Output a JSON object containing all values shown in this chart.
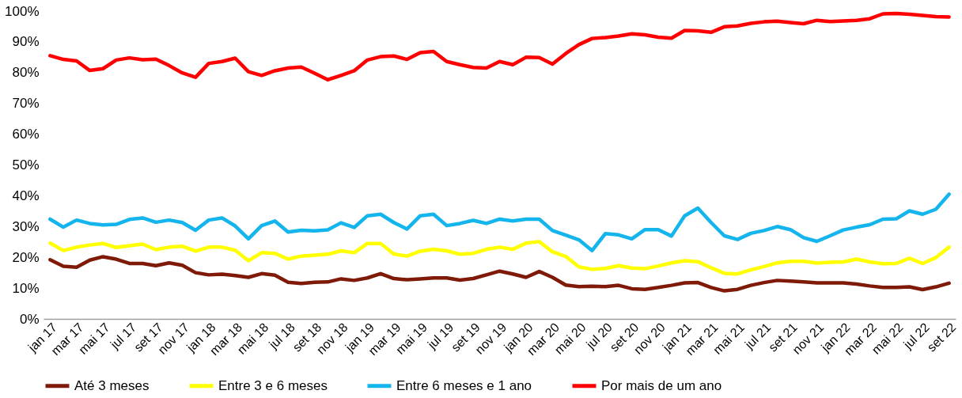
{
  "chart_data": {
    "type": "line",
    "categories": [
      "jan 17",
      null,
      "mar 17",
      null,
      "mai 17",
      null,
      "jul 17",
      null,
      "set 17",
      null,
      "nov 17",
      null,
      "jan 18",
      null,
      "mar 18",
      null,
      "mai 18",
      null,
      "jul 18",
      null,
      "set 18",
      null,
      "nov 18",
      null,
      "jan 19",
      null,
      "mar 19",
      null,
      "mai 19",
      null,
      "jul 19",
      null,
      "set 19",
      null,
      "nov 19",
      null,
      "jan 20",
      null,
      "mar 20",
      null,
      "mai 20",
      null,
      "jul 20",
      null,
      "set 20",
      null,
      "nov 20",
      null,
      "jan 21",
      null,
      "mar 21",
      null,
      "mai 21",
      null,
      "jul 21",
      null,
      "set 21",
      null,
      "nov 21",
      null,
      "jan 22",
      null,
      "mar 22",
      null,
      "mai 22",
      null,
      "jul 22",
      null,
      "set 22"
    ],
    "series": [
      {
        "name": "Até 3 meses",
        "color": "#7f1a08",
        "values": [
          19.2,
          17.1,
          16.8,
          19.1,
          20.2,
          19.4,
          18.0,
          18.0,
          17.3,
          18.2,
          17.4,
          15.0,
          14.3,
          14.5,
          14.1,
          13.5,
          14.7,
          14.2,
          11.9,
          11.5,
          11.9,
          12.0,
          13.0,
          12.5,
          13.3,
          14.7,
          13.1,
          12.7,
          13.0,
          13.3,
          13.3,
          12.6,
          13.1,
          14.3,
          15.5,
          14.6,
          13.5,
          15.4,
          13.5,
          11.0,
          10.5,
          10.6,
          10.5,
          10.9,
          9.8,
          9.6,
          10.2,
          10.9,
          11.7,
          11.8,
          10.2,
          9.1,
          9.6,
          10.9,
          11.8,
          12.5,
          12.3,
          12.0,
          11.7,
          11.7,
          11.7,
          11.3,
          10.7,
          10.2,
          10.2,
          10.4,
          9.5,
          10.4,
          11.6
        ]
      },
      {
        "name": "Entre 3 e 6 meses",
        "color": "#ffff00",
        "values": [
          24.6,
          22.2,
          23.3,
          24.0,
          24.5,
          23.2,
          23.8,
          24.3,
          22.5,
          23.3,
          23.6,
          22.0,
          23.3,
          23.3,
          22.3,
          18.9,
          21.5,
          21.3,
          19.4,
          20.4,
          20.7,
          21.0,
          22.1,
          21.5,
          24.5,
          24.5,
          21.1,
          20.4,
          22.0,
          22.6,
          22.1,
          21.0,
          21.3,
          22.6,
          23.3,
          22.6,
          24.6,
          25.1,
          21.8,
          20.3,
          16.9,
          16.1,
          16.4,
          17.3,
          16.5,
          16.3,
          17.2,
          18.2,
          18.9,
          18.6,
          16.6,
          14.8,
          14.6,
          15.9,
          17.0,
          18.2,
          18.7,
          18.7,
          18.1,
          18.4,
          18.5,
          19.4,
          18.5,
          17.9,
          18.0,
          19.7,
          18.0,
          19.9,
          23.3
        ]
      },
      {
        "name": "Entre 6 meses e 1 ano",
        "color": "#14b4ec",
        "values": [
          32.4,
          29.8,
          32.1,
          31.0,
          30.5,
          30.7,
          32.3,
          32.8,
          31.4,
          32.1,
          31.3,
          28.8,
          32.1,
          32.8,
          30.2,
          26.0,
          30.3,
          31.8,
          28.2,
          28.8,
          28.6,
          28.9,
          31.2,
          29.7,
          33.5,
          34.0,
          31.3,
          29.2,
          33.5,
          34.0,
          30.3,
          31.0,
          32.0,
          31.0,
          32.4,
          31.8,
          32.4,
          32.4,
          28.7,
          27.2,
          25.7,
          22.2,
          27.7,
          27.3,
          26.0,
          29.0,
          29.0,
          26.9,
          33.5,
          36.0,
          31.3,
          27.0,
          25.8,
          27.8,
          28.7,
          30.0,
          29.0,
          26.4,
          25.2,
          27.0,
          28.9,
          29.8,
          30.6,
          32.4,
          32.5,
          35.1,
          34.0,
          35.6,
          40.5
        ]
      },
      {
        "name": "Por mais de um ano",
        "color": "#ff0000",
        "values": [
          85.5,
          84.3,
          83.8,
          80.7,
          81.3,
          84.1,
          84.8,
          84.2,
          84.4,
          82.3,
          79.9,
          78.5,
          83.0,
          83.6,
          84.7,
          80.3,
          79.1,
          80.6,
          81.5,
          81.8,
          79.8,
          77.7,
          79.1,
          80.6,
          84.1,
          85.2,
          85.4,
          84.3,
          86.5,
          86.9,
          83.6,
          82.6,
          81.7,
          81.5,
          83.6,
          82.6,
          85.0,
          84.9,
          82.8,
          86.2,
          89.1,
          91.1,
          91.4,
          91.9,
          92.6,
          92.3,
          91.5,
          91.2,
          93.7,
          93.6,
          93.1,
          94.9,
          95.2,
          96.0,
          96.5,
          96.7,
          96.3,
          95.9,
          97.0,
          96.6,
          96.8,
          97.0,
          97.5,
          99.1,
          99.2,
          99.0,
          98.6,
          98.2,
          98.1
        ]
      }
    ],
    "ylim": [
      0,
      100
    ],
    "yticks": [
      {
        "value": 0,
        "label": "0%"
      },
      {
        "value": 10,
        "label": "10%"
      },
      {
        "value": 20,
        "label": "20%"
      },
      {
        "value": 30,
        "label": "30%"
      },
      {
        "value": 40,
        "label": "40%"
      },
      {
        "value": 50,
        "label": "50%"
      },
      {
        "value": 60,
        "label": "60%"
      },
      {
        "value": 70,
        "label": "70%"
      },
      {
        "value": 80,
        "label": "80%"
      },
      {
        "value": 90,
        "label": "90%"
      },
      {
        "value": 100,
        "label": "100%"
      }
    ],
    "grid": false,
    "legend": "bottom",
    "marker": "none",
    "line_style": "solid"
  }
}
